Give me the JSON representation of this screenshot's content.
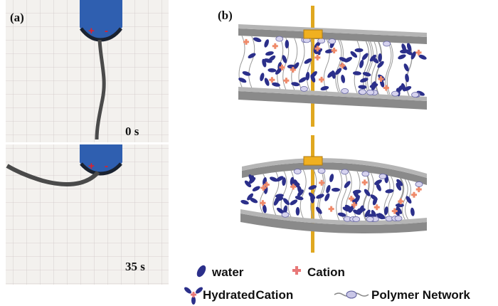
{
  "panel_a": {
    "label": "(a)",
    "electrode_signs": [
      "+",
      "-"
    ],
    "frames": [
      {
        "time": "0 s"
      },
      {
        "time": "35 s"
      }
    ]
  },
  "panel_b": {
    "label": "(b)"
  },
  "legend": {
    "items": [
      {
        "label": "water"
      },
      {
        "label": "Cation"
      },
      {
        "label": "Hydrated Cation"
      },
      {
        "label": "Polymer Network"
      }
    ]
  }
}
